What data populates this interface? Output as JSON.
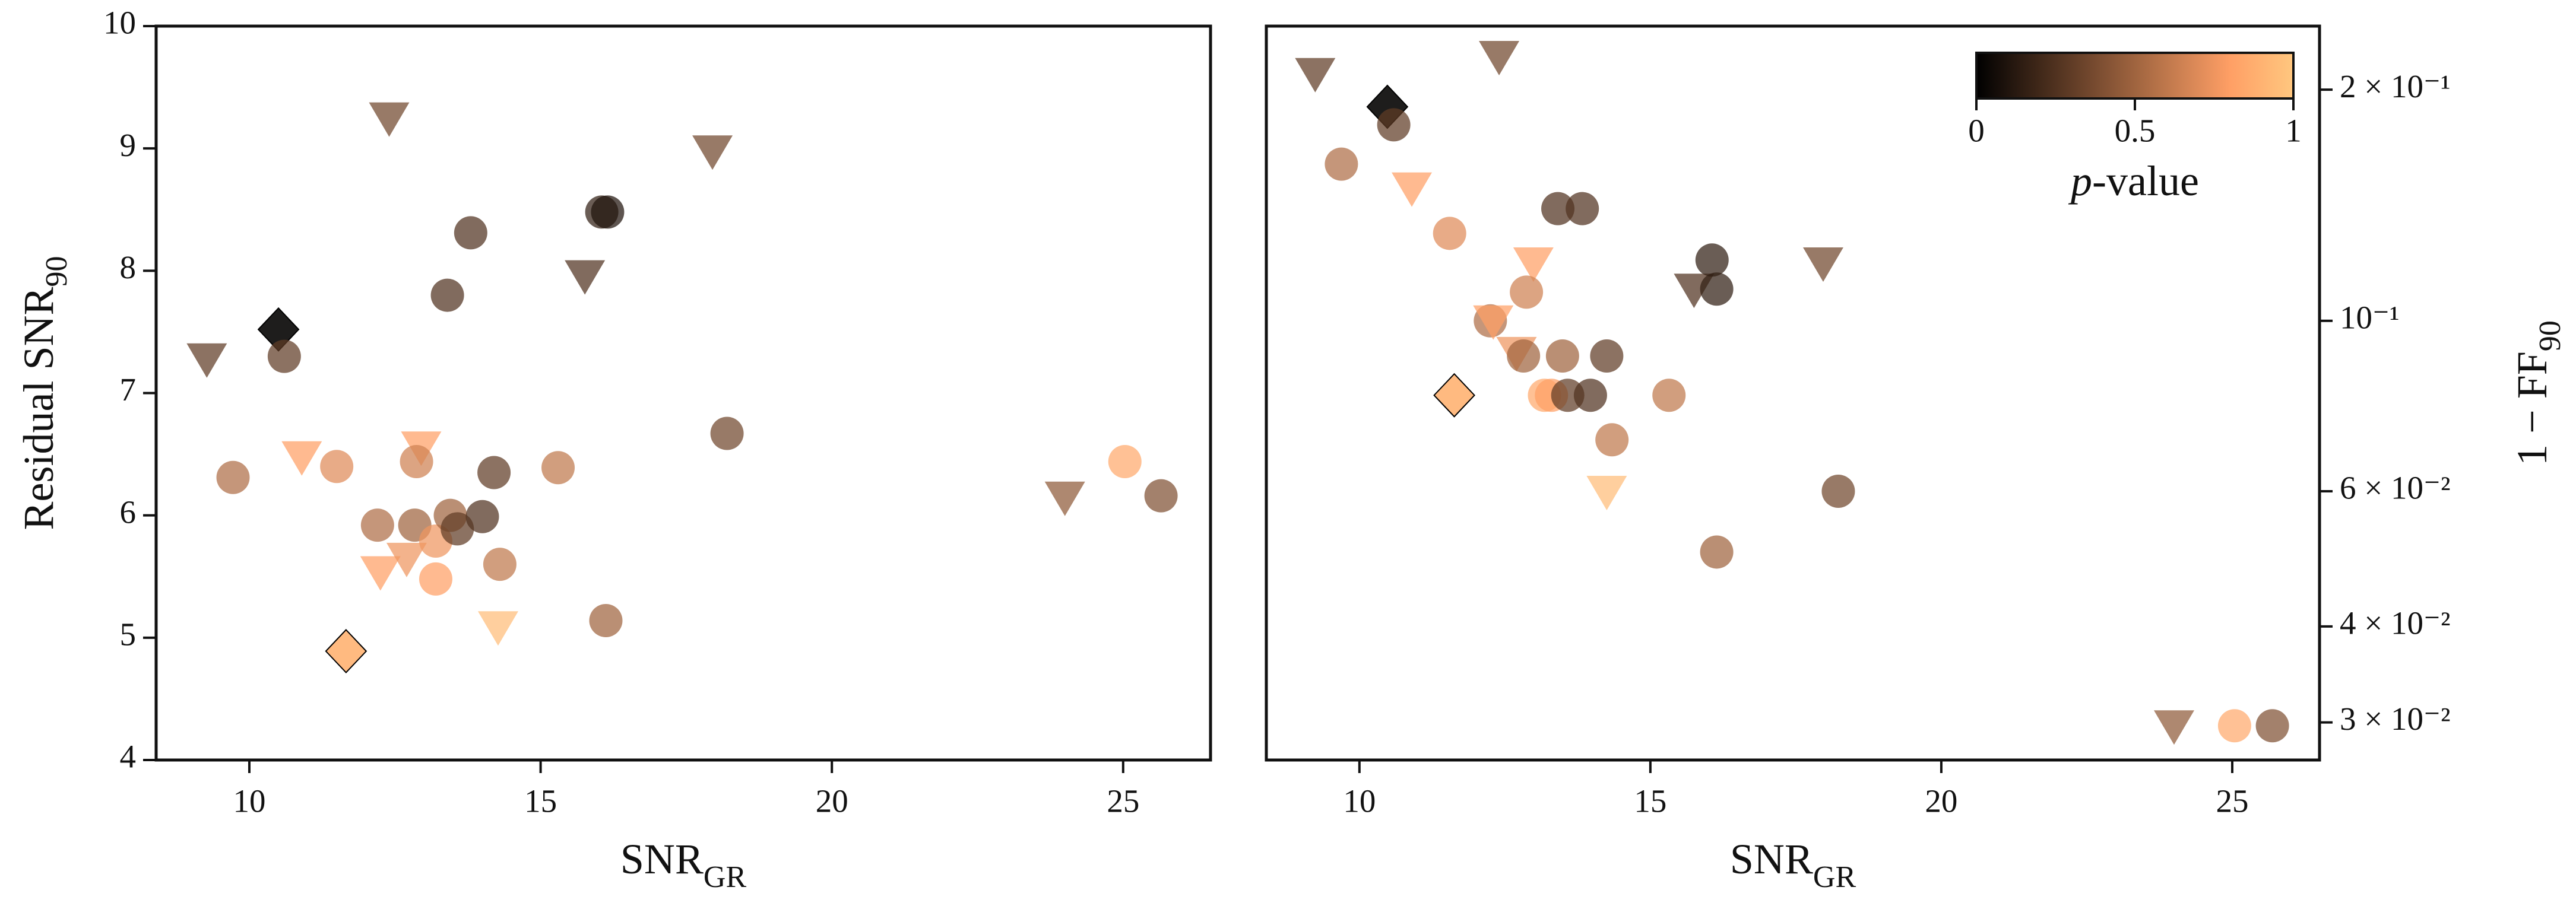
{
  "chart_data": [
    {
      "type": "scatter",
      "x_label": {
        "text": "SNR",
        "subscript": "GR"
      },
      "y_label": {
        "text": "Residual SNR",
        "subscript": "90"
      },
      "xlim": [
        8.4,
        26.5
      ],
      "xticks": [
        10,
        15,
        20,
        25
      ],
      "ylim": [
        4,
        10
      ],
      "yticks": [
        4,
        5,
        6,
        7,
        8,
        9,
        10
      ],
      "y_axis_side": "left",
      "colormap": "copper",
      "x": [
        9.27,
        9.72,
        10.5,
        10.6,
        10.9,
        11.5,
        11.66,
        12.2,
        12.25,
        12.4,
        12.7,
        12.84,
        12.95,
        12.87,
        13.2,
        13.2,
        13.4,
        13.45,
        13.57,
        13.8,
        14.0,
        14.2,
        14.27,
        14.3,
        15.3,
        15.76,
        16.05,
        16.15,
        16.12,
        17.95,
        18.2,
        24.0,
        25.03,
        25.65
      ],
      "y": [
        7.28,
        6.31,
        7.52,
        7.3,
        6.48,
        6.4,
        4.89,
        5.92,
        5.54,
        9.25,
        5.65,
        5.92,
        6.56,
        6.44,
        5.79,
        5.48,
        7.8,
        6.0,
        5.89,
        8.31,
        5.99,
        6.35,
        5.09,
        5.6,
        6.39,
        7.96,
        8.48,
        8.48,
        5.14,
        8.98,
        6.67,
        6.15,
        6.44,
        6.16
      ],
      "p_values": [
        0.3,
        0.55,
        0.02,
        0.3,
        0.8,
        0.7,
        0.9,
        0.55,
        0.8,
        0.35,
        0.75,
        0.5,
        0.8,
        0.65,
        0.75,
        0.8,
        0.25,
        0.5,
        0.3,
        0.25,
        0.25,
        0.3,
        0.95,
        0.6,
        0.6,
        0.25,
        0.15,
        0.1,
        0.5,
        0.35,
        0.35,
        0.45,
        0.85,
        0.4
      ],
      "markers": [
        "triangle",
        "circle",
        "diamond",
        "circle",
        "triangle",
        "circle",
        "diamond",
        "circle",
        "triangle",
        "triangle",
        "triangle",
        "circle",
        "triangle",
        "circle",
        "circle",
        "circle",
        "circle",
        "circle",
        "circle",
        "circle",
        "circle",
        "circle",
        "triangle",
        "circle",
        "circle",
        "triangle",
        "circle",
        "circle",
        "circle",
        "triangle",
        "circle",
        "triangle",
        "circle",
        "circle"
      ]
    },
    {
      "type": "scatter",
      "x_label": {
        "text": "SNR",
        "subscript": "GR"
      },
      "y_label": {
        "text": "1 − FF",
        "subscript": "90"
      },
      "xlim": [
        8.4,
        26.5
      ],
      "xticks": [
        10,
        15,
        20,
        25
      ],
      "ylim": [
        0.0268,
        0.242
      ],
      "yscale": "log",
      "yticks": [
        {
          "value": 0.2,
          "label": "2 × 10⁻¹"
        },
        {
          "value": 0.1,
          "label": "10⁻¹"
        },
        {
          "value": 0.06,
          "label": "6 × 10⁻²"
        },
        {
          "value": 0.04,
          "label": "4 × 10⁻²"
        },
        {
          "value": 0.03,
          "label": "3 × 10⁻²"
        }
      ],
      "y_axis_side": "right",
      "colormap": "copper",
      "colorbar": {
        "label": {
          "symbol": "p",
          "text": "-value"
        },
        "lim": [
          0,
          1
        ],
        "ticks": [
          0,
          0.5,
          1
        ]
      },
      "x": [
        9.24,
        9.69,
        10.48,
        10.59,
        10.9,
        11.55,
        11.63,
        12.25,
        12.3,
        12.4,
        12.7,
        12.82,
        12.99,
        12.87,
        13.18,
        13.3,
        13.41,
        13.49,
        13.58,
        13.83,
        13.97,
        14.25,
        14.25,
        14.34,
        15.32,
        15.75,
        16.06,
        16.14,
        16.14,
        17.97,
        18.23,
        24.0,
        25.04,
        25.69
      ],
      "y": [
        0.21,
        0.16,
        0.19,
        0.18,
        0.149,
        0.13,
        0.08,
        0.1,
        0.1,
        0.221,
        0.091,
        0.09,
        0.119,
        0.109,
        0.08,
        0.08,
        0.14,
        0.09,
        0.08,
        0.14,
        0.08,
        0.09,
        0.06,
        0.07,
        0.08,
        0.11,
        0.12,
        0.11,
        0.05,
        0.119,
        0.06,
        0.0297,
        0.0297,
        0.0297
      ],
      "p_values": [
        0.3,
        0.55,
        0.02,
        0.3,
        0.8,
        0.7,
        0.9,
        0.55,
        0.8,
        0.35,
        0.75,
        0.5,
        0.8,
        0.65,
        0.85,
        0.8,
        0.25,
        0.5,
        0.3,
        0.25,
        0.25,
        0.3,
        0.95,
        0.6,
        0.6,
        0.25,
        0.15,
        0.15,
        0.5,
        0.35,
        0.35,
        0.45,
        0.85,
        0.4
      ],
      "markers": [
        "triangle",
        "circle",
        "diamond",
        "circle",
        "triangle",
        "circle",
        "diamond",
        "circle",
        "triangle",
        "triangle",
        "triangle",
        "circle",
        "triangle",
        "circle",
        "circle",
        "circle",
        "circle",
        "circle",
        "circle",
        "circle",
        "circle",
        "circle",
        "triangle",
        "circle",
        "circle",
        "triangle",
        "circle",
        "circle",
        "circle",
        "triangle",
        "circle",
        "triangle",
        "circle",
        "circle"
      ]
    }
  ]
}
